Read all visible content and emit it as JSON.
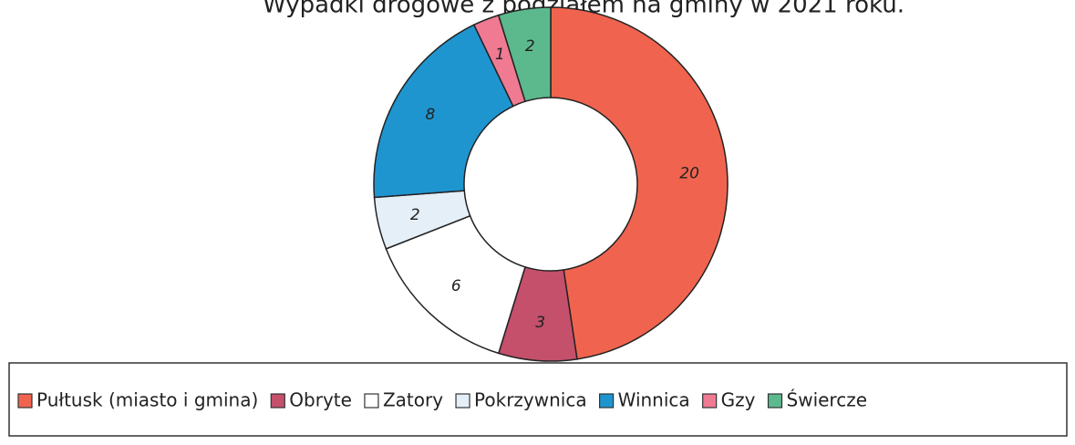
{
  "chart_data": {
    "type": "pie",
    "title": "Wypadki drogowe z podziałem na gminy w 2021 roku.",
    "categories": [
      "Pułtusk (miasto i gmina)",
      "Obryte",
      "Zatory",
      "Pokrzywnica",
      "Winnica",
      "Gzy",
      "Świercze"
    ],
    "values": [
      20,
      3,
      6,
      2,
      8,
      1,
      2
    ],
    "colors": [
      "#f0644f",
      "#c4506c",
      "#ffffff",
      "#e4eff8",
      "#1f95d0",
      "#ef7a92",
      "#5cb98e"
    ],
    "legend": "bottom"
  }
}
